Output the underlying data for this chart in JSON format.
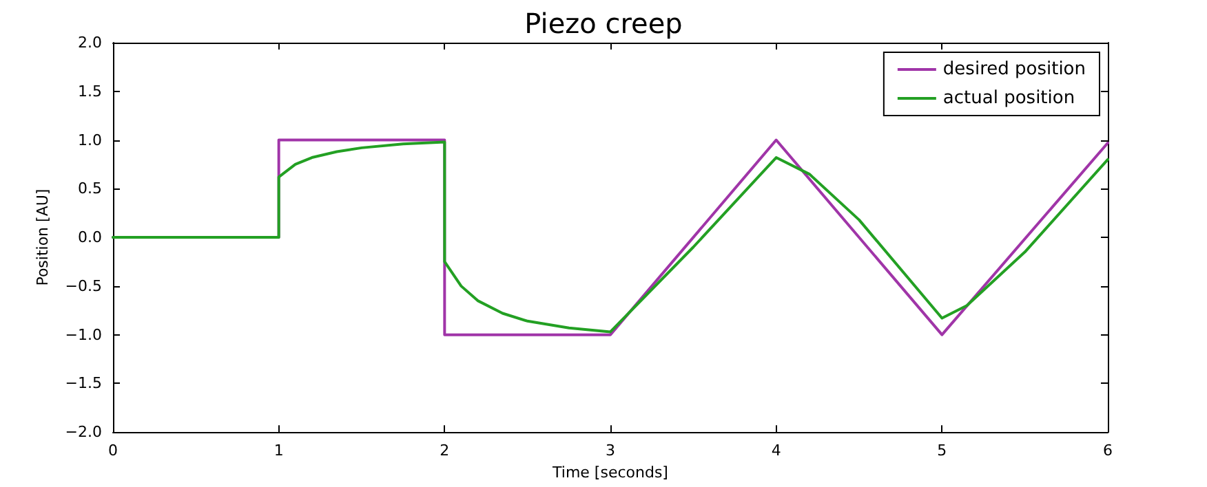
{
  "chart_data": {
    "type": "line",
    "title": "Piezo creep",
    "xlabel": "Time [seconds]",
    "ylabel": "Position [AU]",
    "xlim": [
      0,
      6
    ],
    "xticks": [
      0,
      1,
      2,
      3,
      4,
      5,
      6
    ],
    "ylim": [
      -2,
      2
    ],
    "yticks": [
      {
        "value": -2,
        "label": "−2.0"
      },
      {
        "value": -1.5,
        "label": "−1.5"
      },
      {
        "value": -1,
        "label": "−1.0"
      },
      {
        "value": -0.5,
        "label": "−0.5"
      },
      {
        "value": 0,
        "label": "0.0"
      },
      {
        "value": 0.5,
        "label": "0.5"
      },
      {
        "value": 1,
        "label": "1.0"
      },
      {
        "value": 1.5,
        "label": "1.5"
      },
      {
        "value": 2,
        "label": "2.0"
      }
    ],
    "grid": false,
    "legend": "top right",
    "marker": "none",
    "line_style": "solid",
    "series": [
      {
        "name": "desired position",
        "color": "#a035a8",
        "x": [
          0,
          1,
          1,
          2,
          2,
          3,
          4,
          5,
          6
        ],
        "values": [
          0,
          0,
          1,
          1,
          -1,
          -1,
          1,
          -1,
          0.97
        ]
      },
      {
        "name": "actual position",
        "color": "#23a023",
        "x": [
          0,
          1,
          1,
          1.1,
          1.2,
          1.35,
          1.5,
          1.75,
          2,
          2,
          2.1,
          2.2,
          2.35,
          2.5,
          2.75,
          3,
          3.5,
          4,
          4.2,
          4.5,
          5,
          5.15,
          5.5,
          6
        ],
        "values": [
          0,
          0,
          0.62,
          0.75,
          0.82,
          0.88,
          0.92,
          0.96,
          0.98,
          -0.25,
          -0.5,
          -0.65,
          -0.78,
          -0.86,
          -0.93,
          -0.97,
          -0.1,
          0.82,
          0.65,
          0.18,
          -0.83,
          -0.7,
          -0.15,
          0.8
        ]
      }
    ]
  }
}
